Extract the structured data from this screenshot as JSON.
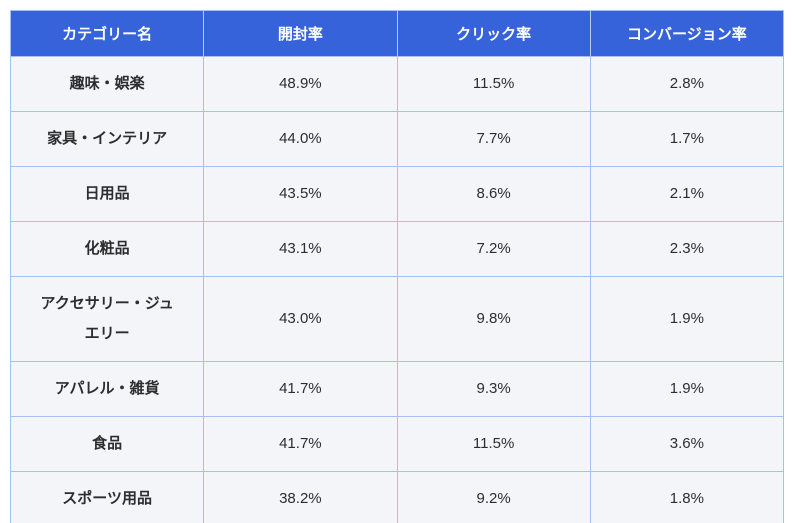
{
  "table": {
    "columns": [
      {
        "key": "category",
        "label": "カテゴリー名"
      },
      {
        "key": "open_rate",
        "label": "開封率"
      },
      {
        "key": "click_rate",
        "label": "クリック率"
      },
      {
        "key": "conversion_rate",
        "label": "コンバージョン率"
      }
    ],
    "rows": [
      {
        "category": "趣味・娯楽",
        "open_rate": "48.9%",
        "click_rate": "11.5%",
        "conversion_rate": "2.8%"
      },
      {
        "category": "家具・インテリア",
        "open_rate": "44.0%",
        "click_rate": "7.7%",
        "conversion_rate": "1.7%"
      },
      {
        "category": "日用品",
        "open_rate": "43.5%",
        "click_rate": "8.6%",
        "conversion_rate": "2.1%"
      },
      {
        "category": "化粧品",
        "open_rate": "43.1%",
        "click_rate": "7.2%",
        "conversion_rate": "2.3%"
      },
      {
        "category": "アクセサリー・ジュエリー",
        "open_rate": "43.0%",
        "click_rate": "9.8%",
        "conversion_rate": "1.9%"
      },
      {
        "category": "アパレル・雑貨",
        "open_rate": "41.7%",
        "click_rate": "9.3%",
        "conversion_rate": "1.9%"
      },
      {
        "category": "食品",
        "open_rate": "41.7%",
        "click_rate": "11.5%",
        "conversion_rate": "3.6%"
      },
      {
        "category": "スポーツ用品",
        "open_rate": "38.2%",
        "click_rate": "9.2%",
        "conversion_rate": "1.8%"
      }
    ],
    "colors": {
      "header_bg": "#3763da",
      "header_text": "#ffffff",
      "body_bg": "#f4f5f9",
      "border": "#a4c1ef",
      "bottom_strip": "#84abe9"
    }
  },
  "chart_data": {
    "type": "table",
    "columns": [
      "カテゴリー名",
      "開封率",
      "クリック率",
      "コンバージョン率"
    ],
    "rows": [
      [
        "趣味・娯楽",
        "48.9%",
        "11.5%",
        "2.8%"
      ],
      [
        "家具・インテリア",
        "44.0%",
        "7.7%",
        "1.7%"
      ],
      [
        "日用品",
        "43.5%",
        "8.6%",
        "2.1%"
      ],
      [
        "化粧品",
        "43.1%",
        "7.2%",
        "2.3%"
      ],
      [
        "アクセサリー・ジュエリー",
        "43.0%",
        "9.8%",
        "1.9%"
      ],
      [
        "アパレル・雑貨",
        "41.7%",
        "9.3%",
        "1.9%"
      ],
      [
        "食品",
        "41.7%",
        "11.5%",
        "3.6%"
      ],
      [
        "スポーツ用品",
        "38.2%",
        "9.2%",
        "1.8%"
      ]
    ]
  }
}
